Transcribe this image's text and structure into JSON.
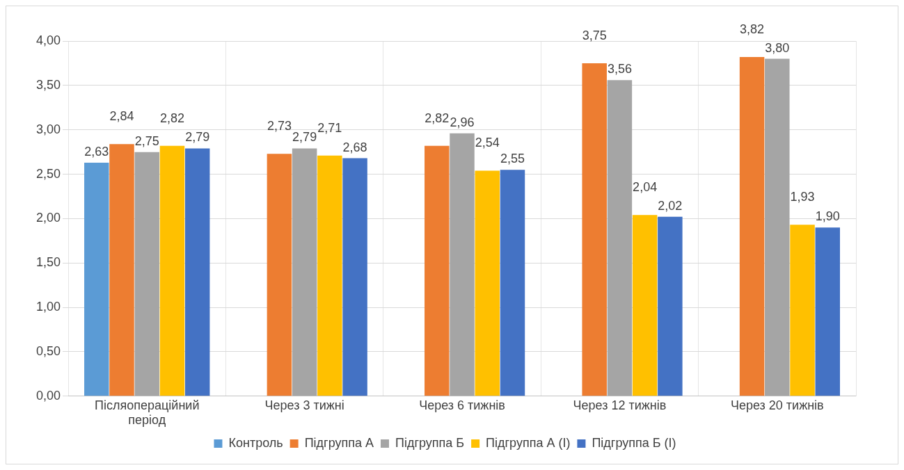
{
  "chart_data": {
    "type": "bar",
    "categories": [
      "Післяопераційний період",
      "Через 3 тижні",
      "Через 6 тижнів",
      "Через 12 тижнів",
      "Через 20 тижнів"
    ],
    "series": [
      {
        "name": "Контроль",
        "color": "#5b9bd5",
        "values": [
          2.63,
          null,
          null,
          null,
          null
        ],
        "value_labels": [
          "2,63",
          null,
          null,
          null,
          null
        ]
      },
      {
        "name": "Підгруппа А",
        "color": "#ed7d31",
        "values": [
          2.84,
          2.73,
          2.82,
          3.75,
          3.82
        ],
        "value_labels": [
          "2,84",
          "2,73",
          "2,82",
          "3,75",
          "3,82"
        ]
      },
      {
        "name": "Підгруппа Б",
        "color": "#a5a5a5",
        "values": [
          2.75,
          2.79,
          2.96,
          3.56,
          3.8
        ],
        "value_labels": [
          "2,75",
          "2,79",
          "2,96",
          "3,56",
          "3,80"
        ]
      },
      {
        "name": "Підгруппа А (І)",
        "color": "#ffc000",
        "values": [
          2.82,
          2.71,
          2.54,
          2.04,
          1.93
        ],
        "value_labels": [
          "2,82",
          "2,71",
          "2,54",
          "2,04",
          "1,93"
        ]
      },
      {
        "name": "Підгруппа Б (І)",
        "color": "#4472c4",
        "values": [
          2.79,
          2.68,
          2.55,
          2.02,
          1.9
        ],
        "value_labels": [
          "2,79",
          "2,68",
          "2,55",
          "2,02",
          "1,90"
        ]
      }
    ],
    "ylim": [
      0,
      4
    ],
    "yticks": [
      {
        "value": 0,
        "label": "0,00"
      },
      {
        "value": 0.5,
        "label": "0,50"
      },
      {
        "value": 1,
        "label": "1,00"
      },
      {
        "value": 1.5,
        "label": "1,50"
      },
      {
        "value": 2,
        "label": "2,00"
      },
      {
        "value": 2.5,
        "label": "2,50"
      },
      {
        "value": 3,
        "label": "3,00"
      },
      {
        "value": 3.5,
        "label": "3,50"
      },
      {
        "value": 4,
        "label": "4,00"
      }
    ],
    "grid": true,
    "legend": "bottom"
  }
}
